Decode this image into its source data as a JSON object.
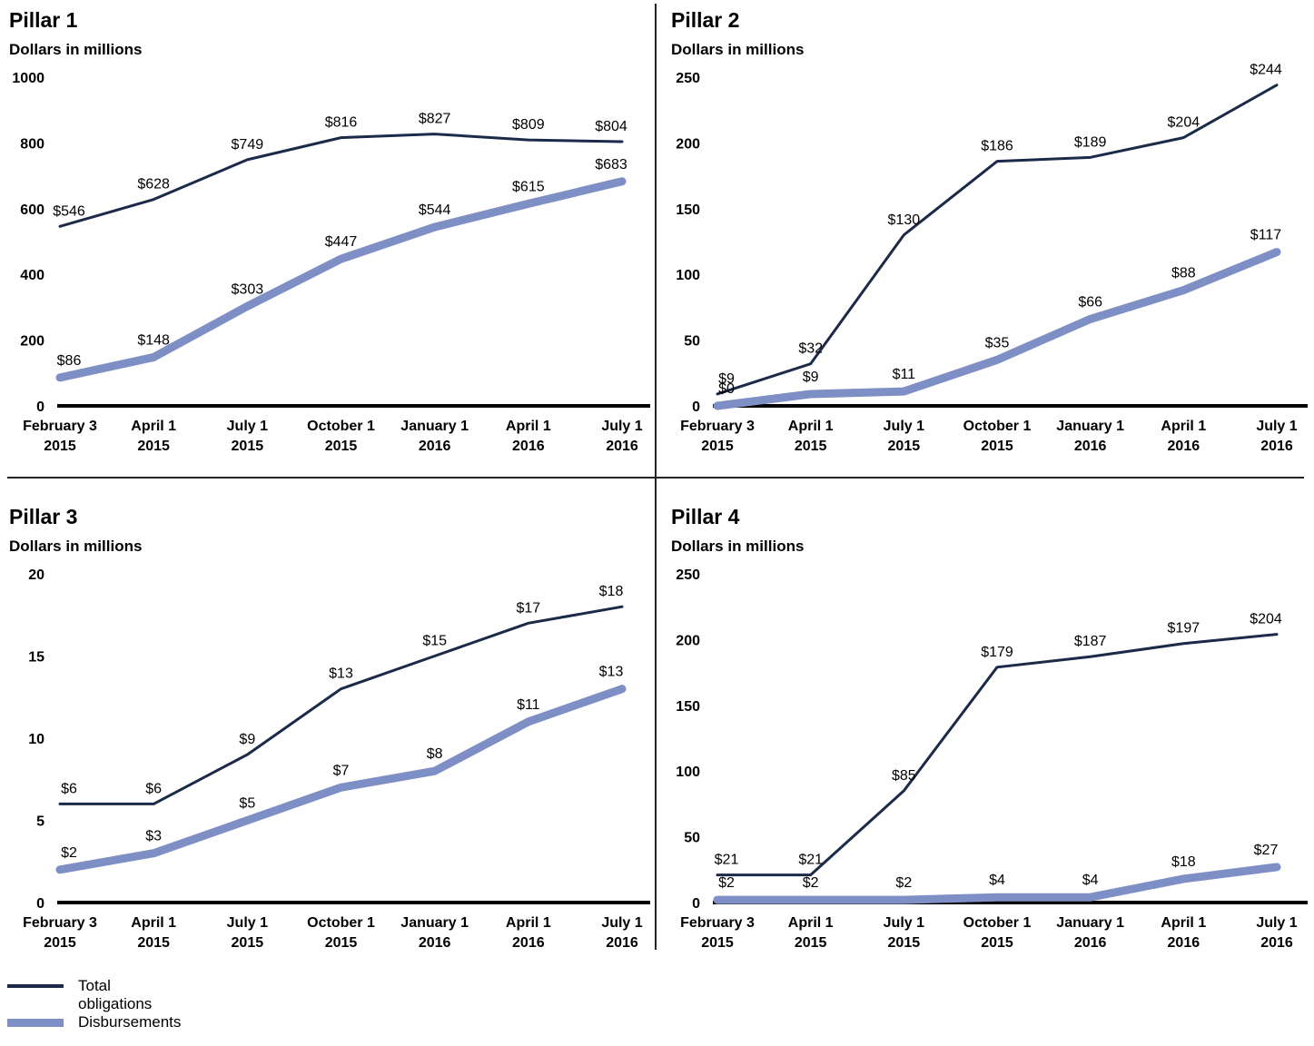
{
  "legend": {
    "obligations_label": "Total obligations",
    "disbursements_label": "Disbursements"
  },
  "colors": {
    "obligations": "#1b2a49",
    "disbursements": "#7d8fc4"
  },
  "chart_data": [
    {
      "type": "line",
      "title": "Pillar 1",
      "ylabel": "Dollars in millions",
      "ylim": [
        0,
        1000
      ],
      "yticks": [
        "0",
        "200",
        "400",
        "600",
        "800",
        "1000"
      ],
      "categories": [
        [
          "February 3",
          "2015"
        ],
        [
          "April 1",
          "2015"
        ],
        [
          "July 1",
          "2015"
        ],
        [
          "October 1",
          "2015"
        ],
        [
          "January 1",
          "2016"
        ],
        [
          "April 1",
          "2016"
        ],
        [
          "July 1",
          "2016"
        ]
      ],
      "series": [
        {
          "name": "Total obligations",
          "values": [
            546,
            628,
            749,
            816,
            827,
            809,
            804
          ],
          "labels": [
            "$546",
            "$628",
            "$749",
            "$816",
            "$827",
            "$809",
            "$804"
          ]
        },
        {
          "name": "Disbursements",
          "values": [
            86,
            148,
            303,
            447,
            544,
            615,
            683
          ],
          "labels": [
            "$86",
            "$148",
            "$303",
            "$447",
            "$544",
            "$615",
            "$683"
          ]
        }
      ]
    },
    {
      "type": "line",
      "title": "Pillar 2",
      "ylabel": "Dollars in millions",
      "ylim": [
        0,
        250
      ],
      "yticks": [
        "0",
        "50",
        "100",
        "150",
        "200",
        "250"
      ],
      "categories": [
        [
          "February 3",
          "2015"
        ],
        [
          "April 1",
          "2015"
        ],
        [
          "July 1",
          "2015"
        ],
        [
          "October 1",
          "2015"
        ],
        [
          "January 1",
          "2016"
        ],
        [
          "April 1",
          "2016"
        ],
        [
          "July 1",
          "2016"
        ]
      ],
      "series": [
        {
          "name": "Total obligations",
          "values": [
            9,
            32,
            130,
            186,
            189,
            204,
            244
          ],
          "labels": [
            "$9",
            "$32",
            "$130",
            "$186",
            "$189",
            "$204",
            "$244"
          ]
        },
        {
          "name": "Disbursements",
          "values": [
            0,
            9,
            11,
            35,
            66,
            88,
            117
          ],
          "labels": [
            "$0",
            "$9",
            "$11",
            "$35",
            "$66",
            "$88",
            "$117"
          ]
        }
      ]
    },
    {
      "type": "line",
      "title": "Pillar 3",
      "ylabel": "Dollars in millions",
      "ylim": [
        0,
        20
      ],
      "yticks": [
        "0",
        "5",
        "10",
        "15",
        "20"
      ],
      "categories": [
        [
          "February 3",
          "2015"
        ],
        [
          "April 1",
          "2015"
        ],
        [
          "July 1",
          "2015"
        ],
        [
          "October 1",
          "2015"
        ],
        [
          "January 1",
          "2016"
        ],
        [
          "April 1",
          "2016"
        ],
        [
          "July 1",
          "2016"
        ]
      ],
      "series": [
        {
          "name": "Total obligations",
          "values": [
            6,
            6,
            9,
            13,
            15,
            17,
            18
          ],
          "labels": [
            "$6",
            "$6",
            "$9",
            "$13",
            "$15",
            "$17",
            "$18"
          ]
        },
        {
          "name": "Disbursements",
          "values": [
            2,
            3,
            5,
            7,
            8,
            11,
            13
          ],
          "labels": [
            "$2",
            "$3",
            "$5",
            "$7",
            "$8",
            "$11",
            "$13"
          ]
        }
      ]
    },
    {
      "type": "line",
      "title": "Pillar 4",
      "ylabel": "Dollars in millions",
      "ylim": [
        0,
        250
      ],
      "yticks": [
        "0",
        "50",
        "100",
        "150",
        "200",
        "250"
      ],
      "categories": [
        [
          "February 3",
          "2015"
        ],
        [
          "April 1",
          "2015"
        ],
        [
          "July 1",
          "2015"
        ],
        [
          "October 1",
          "2015"
        ],
        [
          "January 1",
          "2016"
        ],
        [
          "April 1",
          "2016"
        ],
        [
          "July 1",
          "2016"
        ]
      ],
      "series": [
        {
          "name": "Total obligations",
          "values": [
            21,
            21,
            85,
            179,
            187,
            197,
            204
          ],
          "labels": [
            "$21",
            "$21",
            "$85",
            "$179",
            "$187",
            "$197",
            "$204"
          ]
        },
        {
          "name": "Disbursements",
          "values": [
            2,
            2,
            2,
            4,
            4,
            18,
            27
          ],
          "labels": [
            "$2",
            "$2",
            "$2",
            "$4",
            "$4",
            "$18",
            "$27"
          ]
        }
      ]
    }
  ]
}
